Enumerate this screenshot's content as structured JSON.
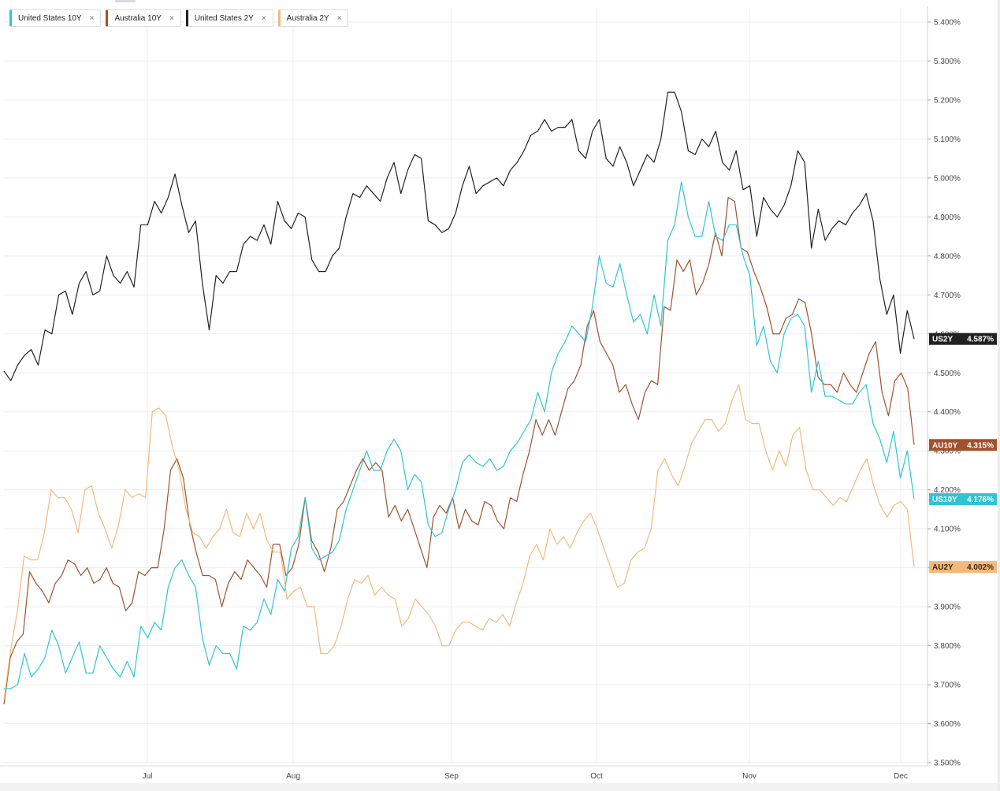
{
  "legend": [
    {
      "label": "United States 10Y",
      "color": "#2ec4d6",
      "close": "×"
    },
    {
      "label": "Australia 10Y",
      "color": "#a0522d",
      "close": "×"
    },
    {
      "label": "United States 2Y",
      "color": "#222222",
      "close": "×"
    },
    {
      "label": "Australia 2Y",
      "color": "#f4b97a",
      "close": "×"
    }
  ],
  "chart_data": {
    "type": "line",
    "x_labels": [
      "Jul",
      "Aug",
      "Sep",
      "Oct",
      "Nov",
      "Dec"
    ],
    "y_ticks": [
      "3.500%",
      "3.600%",
      "3.700%",
      "3.800%",
      "3.900%",
      "4.000%",
      "4.100%",
      "4.200%",
      "4.300%",
      "4.400%",
      "4.500%",
      "4.600%",
      "4.700%",
      "4.800%",
      "4.900%",
      "5.000%",
      "5.100%",
      "5.200%",
      "5.300%",
      "5.400%"
    ],
    "ylim": [
      3.5,
      5.42
    ],
    "grid": true,
    "legend_position": "top-left",
    "series": [
      {
        "name": "United States 2Y",
        "color": "#222222",
        "end_tag": "US2Y",
        "end_value_label": "4.587%",
        "values": [
          4.505,
          4.48,
          4.52,
          4.545,
          4.56,
          4.52,
          4.61,
          4.6,
          4.7,
          4.71,
          4.65,
          4.73,
          4.76,
          4.7,
          4.71,
          4.8,
          4.75,
          4.73,
          4.76,
          4.72,
          4.88,
          4.88,
          4.94,
          4.91,
          4.95,
          5.01,
          4.93,
          4.86,
          4.89,
          4.73,
          4.61,
          4.75,
          4.73,
          4.76,
          4.76,
          4.83,
          4.85,
          4.84,
          4.88,
          4.83,
          4.94,
          4.89,
          4.87,
          4.91,
          4.9,
          4.79,
          4.76,
          4.76,
          4.8,
          4.82,
          4.9,
          4.96,
          4.95,
          4.98,
          4.96,
          4.94,
          5.0,
          5.04,
          4.96,
          5.02,
          5.06,
          5.05,
          4.89,
          4.88,
          4.86,
          4.87,
          4.91,
          4.98,
          5.03,
          4.96,
          4.98,
          4.99,
          5.0,
          4.98,
          5.02,
          5.04,
          5.07,
          5.11,
          5.12,
          5.15,
          5.12,
          5.13,
          5.13,
          5.15,
          5.07,
          5.05,
          5.12,
          5.15,
          5.05,
          5.03,
          5.08,
          5.04,
          4.98,
          5.02,
          5.06,
          5.04,
          5.1,
          5.22,
          5.22,
          5.17,
          5.07,
          5.06,
          5.1,
          5.08,
          5.12,
          5.04,
          5.02,
          5.07,
          4.97,
          4.98,
          4.85,
          4.95,
          4.92,
          4.9,
          4.93,
          4.98,
          5.07,
          5.04,
          4.82,
          4.92,
          4.84,
          4.87,
          4.89,
          4.88,
          4.91,
          4.93,
          4.96,
          4.89,
          4.74,
          4.65,
          4.7,
          4.55,
          4.66,
          4.587
        ]
      },
      {
        "name": "Australia 10Y",
        "color": "#a0522d",
        "end_tag": "AU10Y",
        "end_value_label": "4.315%",
        "values": [
          3.65,
          3.77,
          3.81,
          3.83,
          3.99,
          3.96,
          3.94,
          3.91,
          3.96,
          3.98,
          4.02,
          4.01,
          3.98,
          4.0,
          3.96,
          3.97,
          4.0,
          3.96,
          3.95,
          3.89,
          3.91,
          3.99,
          3.98,
          4.0,
          4.0,
          4.1,
          4.25,
          4.28,
          4.23,
          4.11,
          4.04,
          3.98,
          3.98,
          3.97,
          3.9,
          3.96,
          3.99,
          3.97,
          4.02,
          4.0,
          3.98,
          3.95,
          4.06,
          4.06,
          3.98,
          4.0,
          4.06,
          4.18,
          4.07,
          4.04,
          3.99,
          4.05,
          4.15,
          4.17,
          4.21,
          4.25,
          4.28,
          4.25,
          4.27,
          4.25,
          4.13,
          4.16,
          4.12,
          4.15,
          4.1,
          4.05,
          4.0,
          4.13,
          4.16,
          4.14,
          4.18,
          4.1,
          4.15,
          4.12,
          4.11,
          4.17,
          4.16,
          4.12,
          4.1,
          4.18,
          4.17,
          4.24,
          4.3,
          4.38,
          4.34,
          4.38,
          4.34,
          4.4,
          4.46,
          4.48,
          4.52,
          4.62,
          4.66,
          4.58,
          4.55,
          4.52,
          4.45,
          4.47,
          4.42,
          4.38,
          4.45,
          4.48,
          4.47,
          4.67,
          4.66,
          4.79,
          4.76,
          4.79,
          4.7,
          4.73,
          4.78,
          4.86,
          4.8,
          4.95,
          4.94,
          4.82,
          4.81,
          4.76,
          4.72,
          4.67,
          4.6,
          4.6,
          4.64,
          4.65,
          4.69,
          4.68,
          4.6,
          4.49,
          4.47,
          4.47,
          4.45,
          4.5,
          4.47,
          4.45,
          4.5,
          4.55,
          4.58,
          4.45,
          4.39,
          4.48,
          4.5,
          4.46,
          4.315
        ]
      },
      {
        "name": "United States 10Y",
        "color": "#2ec4d6",
        "end_tag": "US10Y",
        "end_value_label": "4.176%",
        "values": [
          3.69,
          3.69,
          3.7,
          3.78,
          3.72,
          3.74,
          3.77,
          3.84,
          3.8,
          3.73,
          3.77,
          3.81,
          3.73,
          3.73,
          3.8,
          3.77,
          3.74,
          3.72,
          3.76,
          3.72,
          3.85,
          3.82,
          3.86,
          3.84,
          3.95,
          4.0,
          4.02,
          3.98,
          3.95,
          3.82,
          3.75,
          3.8,
          3.78,
          3.78,
          3.74,
          3.85,
          3.84,
          3.86,
          3.92,
          3.88,
          3.97,
          3.94,
          4.05,
          4.08,
          4.18,
          4.05,
          4.02,
          4.03,
          4.04,
          4.07,
          4.15,
          4.2,
          4.25,
          4.3,
          4.25,
          4.25,
          4.3,
          4.33,
          4.3,
          4.2,
          4.24,
          4.22,
          4.11,
          4.08,
          4.09,
          4.15,
          4.2,
          4.27,
          4.29,
          4.27,
          4.26,
          4.28,
          4.25,
          4.26,
          4.3,
          4.32,
          4.35,
          4.38,
          4.45,
          4.4,
          4.5,
          4.55,
          4.58,
          4.62,
          4.6,
          4.58,
          4.67,
          4.8,
          4.73,
          4.72,
          4.78,
          4.7,
          4.63,
          4.65,
          4.6,
          4.7,
          4.62,
          4.84,
          4.88,
          4.99,
          4.9,
          4.85,
          4.85,
          4.94,
          4.85,
          4.84,
          4.88,
          4.88,
          4.8,
          4.75,
          4.57,
          4.62,
          4.53,
          4.5,
          4.6,
          4.64,
          4.65,
          4.62,
          4.45,
          4.53,
          4.44,
          4.44,
          4.43,
          4.42,
          4.42,
          4.45,
          4.47,
          4.37,
          4.33,
          4.27,
          4.35,
          4.23,
          4.3,
          4.176
        ]
      },
      {
        "name": "Australia 2Y",
        "color": "#f4b97a",
        "end_tag": "AU2Y",
        "end_value_label": "4.002%",
        "values": [
          3.66,
          3.79,
          3.89,
          4.03,
          4.02,
          4.02,
          4.09,
          4.2,
          4.18,
          4.18,
          4.15,
          4.09,
          4.2,
          4.21,
          4.14,
          4.1,
          4.05,
          4.11,
          4.2,
          4.18,
          4.19,
          4.18,
          4.4,
          4.41,
          4.39,
          4.31,
          4.25,
          4.15,
          4.09,
          4.08,
          4.05,
          4.08,
          4.1,
          4.15,
          4.09,
          4.08,
          4.14,
          4.1,
          4.14,
          4.07,
          4.04,
          4.04,
          3.92,
          3.94,
          3.95,
          3.9,
          3.9,
          3.78,
          3.78,
          3.8,
          3.85,
          3.92,
          3.97,
          3.96,
          3.98,
          3.93,
          3.95,
          3.93,
          3.92,
          3.85,
          3.87,
          3.92,
          3.9,
          3.88,
          3.85,
          3.8,
          3.8,
          3.84,
          3.86,
          3.86,
          3.85,
          3.84,
          3.87,
          3.86,
          3.88,
          3.85,
          3.91,
          3.96,
          4.03,
          4.06,
          4.02,
          4.1,
          4.06,
          4.08,
          4.05,
          4.09,
          4.12,
          4.14,
          4.1,
          4.05,
          4.0,
          3.95,
          3.96,
          4.02,
          4.04,
          4.05,
          4.1,
          4.25,
          4.28,
          4.24,
          4.21,
          4.26,
          4.32,
          4.35,
          4.38,
          4.38,
          4.35,
          4.37,
          4.43,
          4.47,
          4.38,
          4.37,
          4.37,
          4.3,
          4.25,
          4.3,
          4.26,
          4.34,
          4.36,
          4.25,
          4.2,
          4.2,
          4.18,
          4.16,
          4.18,
          4.17,
          4.21,
          4.25,
          4.28,
          4.21,
          4.16,
          4.13,
          4.16,
          4.17,
          4.15,
          4.002
        ]
      }
    ]
  }
}
